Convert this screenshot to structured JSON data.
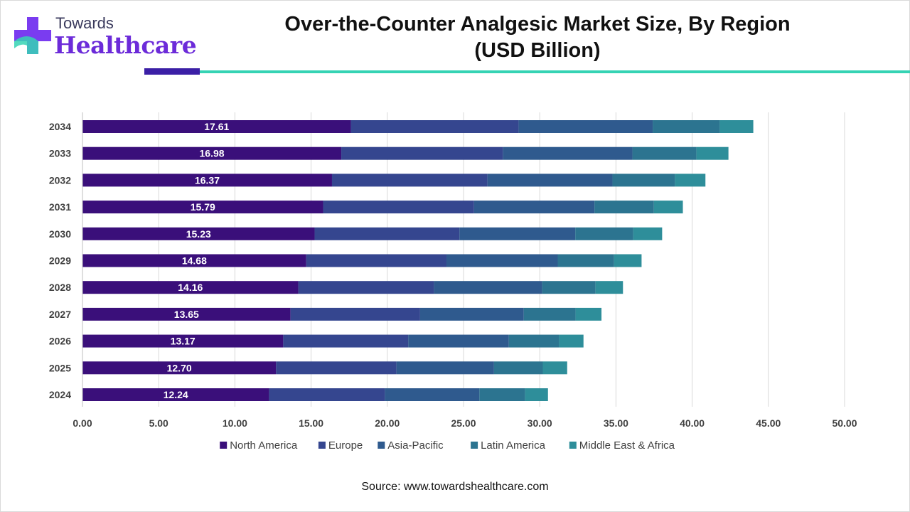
{
  "logo": {
    "line1": "Towards",
    "line2": "Healthcare"
  },
  "source": "Source: www.towardshealthcare.com",
  "colors": {
    "accent_dark": "#3b1fa6",
    "accent_teal": "#35d3b4"
  },
  "chart_data": {
    "type": "bar",
    "orientation": "horizontal",
    "stacked": true,
    "title": "Over-the-Counter Analgesic Market Size, By Region",
    "subtitle": "(USD Billion)",
    "xlabel": "",
    "ylabel": "",
    "xlim": [
      0,
      50
    ],
    "xticks": [
      "0.00",
      "5.00",
      "10.00",
      "15.00",
      "20.00",
      "25.00",
      "30.00",
      "35.00",
      "40.00",
      "45.00",
      "50.00"
    ],
    "grid": true,
    "legend": "bottom",
    "categories": [
      "2034",
      "2033",
      "2032",
      "2031",
      "2030",
      "2029",
      "2028",
      "2027",
      "2026",
      "2025",
      "2024"
    ],
    "series": [
      {
        "name": "North America",
        "color": "#3a0f7a",
        "show_labels": true,
        "values": [
          17.61,
          16.98,
          16.37,
          15.79,
          15.23,
          14.68,
          14.16,
          13.65,
          13.17,
          12.7,
          12.24
        ]
      },
      {
        "name": "Europe",
        "color": "#35468f",
        "show_labels": false,
        "values": [
          11.0,
          10.6,
          10.2,
          9.9,
          9.5,
          9.2,
          8.9,
          8.5,
          8.2,
          7.9,
          7.6
        ]
      },
      {
        "name": "Asia-Pacific",
        "color": "#2f5a8e",
        "show_labels": false,
        "values": [
          8.8,
          8.5,
          8.2,
          7.9,
          7.6,
          7.3,
          7.1,
          6.8,
          6.6,
          6.4,
          6.2
        ]
      },
      {
        "name": "Latin America",
        "color": "#2c7490",
        "show_labels": false,
        "values": [
          4.4,
          4.2,
          4.1,
          3.9,
          3.8,
          3.7,
          3.5,
          3.4,
          3.3,
          3.2,
          3.0
        ]
      },
      {
        "name": "Middle East & Africa",
        "color": "#2e8e9a",
        "show_labels": false,
        "values": [
          2.2,
          2.1,
          2.0,
          1.9,
          1.9,
          1.8,
          1.8,
          1.7,
          1.6,
          1.6,
          1.5
        ]
      }
    ]
  }
}
